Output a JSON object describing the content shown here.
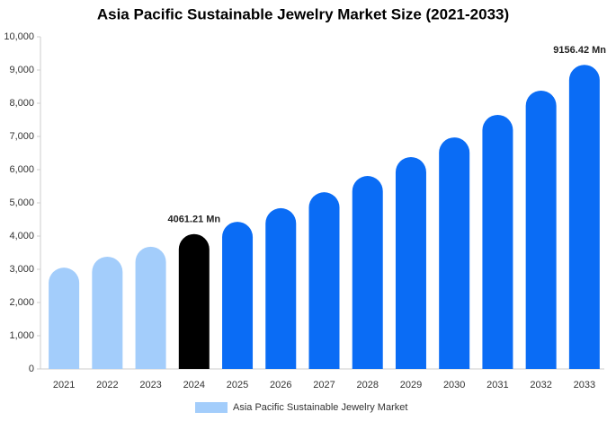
{
  "chart_data": {
    "type": "bar",
    "title": "Asia Pacific Sustainable Jewelry Market Size (2021-2033)",
    "categories": [
      "2021",
      "2022",
      "2023",
      "2024",
      "2025",
      "2026",
      "2027",
      "2028",
      "2029",
      "2030",
      "2031",
      "2032",
      "2033"
    ],
    "series": [
      {
        "name": "Asia Pacific Sustainable Jewelry Market",
        "color": "#a3cdfb",
        "colors": [
          "#a3cdfb",
          "#a3cdfb",
          "#a3cdfb",
          "#000000",
          "#0a6cf5",
          "#0a6cf5",
          "#0a6cf5",
          "#0a6cf5",
          "#0a6cf5",
          "#0a6cf5",
          "#0a6cf5",
          "#0a6cf5",
          "#0a6cf5"
        ],
        "values": [
          3050,
          3380,
          3680,
          4061.21,
          4430,
          4840,
          5320,
          5810,
          6380,
          6970,
          7650,
          8380,
          9156.42
        ],
        "value_labels": [
          null,
          null,
          null,
          "4061.21 Mn",
          null,
          null,
          null,
          null,
          null,
          null,
          null,
          null,
          "9156.42 Mn"
        ]
      }
    ],
    "ylim": [
      0,
      10000
    ],
    "yticks": [
      0,
      {
        "value": 1000,
        "label": "1,000"
      },
      {
        "value": 2000,
        "label": "2,000"
      },
      {
        "value": 3000,
        "label": "3,000"
      },
      {
        "value": 4000,
        "label": "4,000"
      },
      {
        "value": 5000,
        "label": "5,000"
      },
      {
        "value": 6000,
        "label": "6,000"
      },
      {
        "value": 7000,
        "label": "7,000"
      },
      {
        "value": 8000,
        "label": "8,000"
      },
      {
        "value": 9000,
        "label": "9,000"
      },
      {
        "value": 10000,
        "label": "10,000"
      }
    ],
    "grid": false,
    "legend": "bottom"
  }
}
